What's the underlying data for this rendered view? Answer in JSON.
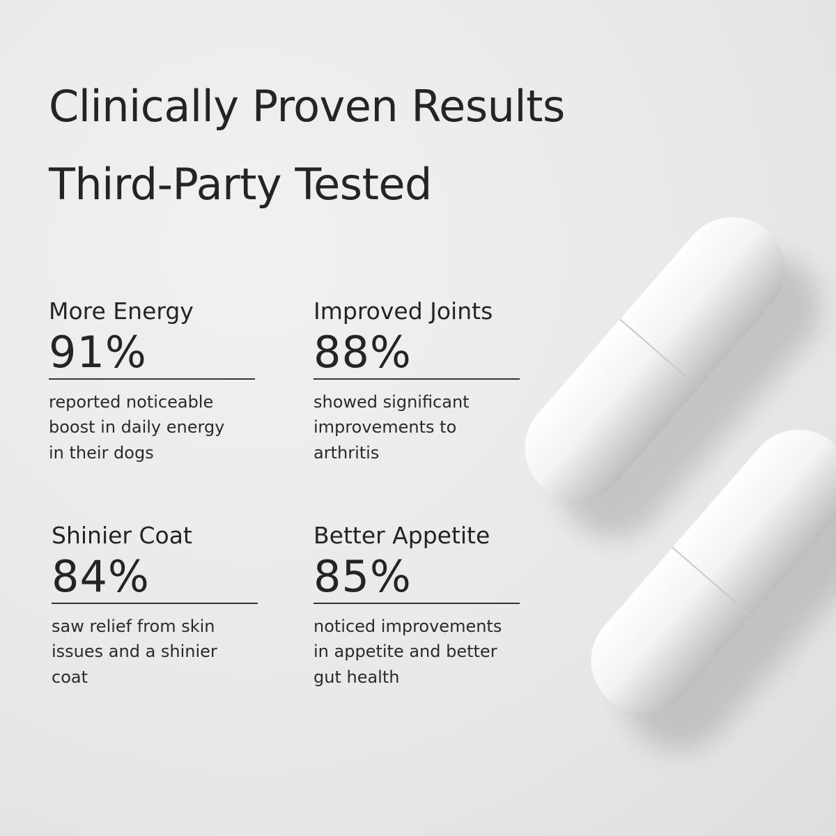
{
  "header": {
    "title": [
      "Clinically Proven Results",
      "Third-Party Tested"
    ]
  },
  "stats": [
    {
      "label": "More Energy",
      "value": "91%",
      "description": [
        "reported noticeable",
        "boost in daily energy",
        "in their dogs"
      ]
    },
    {
      "label": "Improved Joints",
      "value": "88%",
      "description": [
        "showed significant",
        "improvements to",
        "arthritis"
      ]
    },
    {
      "label": "Shinier Coat",
      "value": "84%",
      "description": [
        "saw relief from skin",
        "issues and a shinier",
        "coat"
      ]
    },
    {
      "label": "Better Appetite",
      "value": "85%",
      "description": [
        "noticed improvements",
        "in appetite and better",
        "gut health"
      ]
    }
  ]
}
